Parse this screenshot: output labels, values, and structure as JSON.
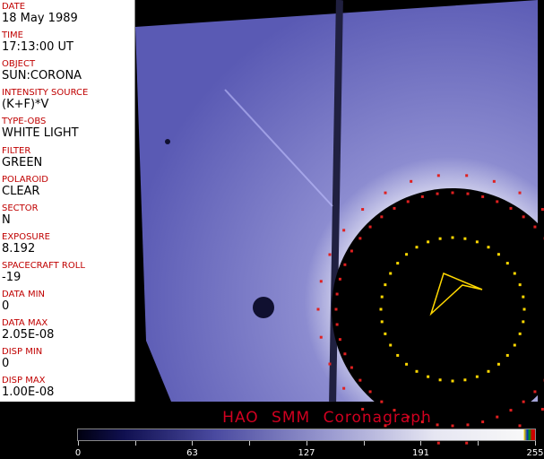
{
  "fields": [
    {
      "label": "DATE",
      "value": "18 May 1989"
    },
    {
      "label": "TIME",
      "value": "17:13:00 UT"
    },
    {
      "label": "OBJECT",
      "value": "SUN:CORONA"
    },
    {
      "label": "INTENSITY SOURCE",
      "value": "(K+F)*V"
    },
    {
      "label": "TYPE-OBS",
      "value": "WHITE LIGHT"
    },
    {
      "label": "FILTER",
      "value": "GREEN"
    },
    {
      "label": "POLAROID",
      "value": "CLEAR"
    },
    {
      "label": "SECTOR",
      "value": "N"
    },
    {
      "label": "EXPOSURE",
      "value": "8.192"
    },
    {
      "label": "SPACECRAFT ROLL",
      "value": "-19"
    },
    {
      "label": "DATA MIN",
      "value": "0"
    },
    {
      "label": "DATA MAX",
      "value": "2.05E-08"
    },
    {
      "label": "DISP MIN",
      "value": "0"
    },
    {
      "label": "DISP MAX",
      "value": "1.00E-08"
    }
  ],
  "title": "HAO  SMM Coronagraph",
  "colorbar": {
    "ticks": [
      "0",
      "63",
      "127",
      "191",
      "255"
    ],
    "colors": {
      "low": "#000010",
      "mid": "#4a4aa0",
      "high": "#f8f8f8"
    }
  }
}
